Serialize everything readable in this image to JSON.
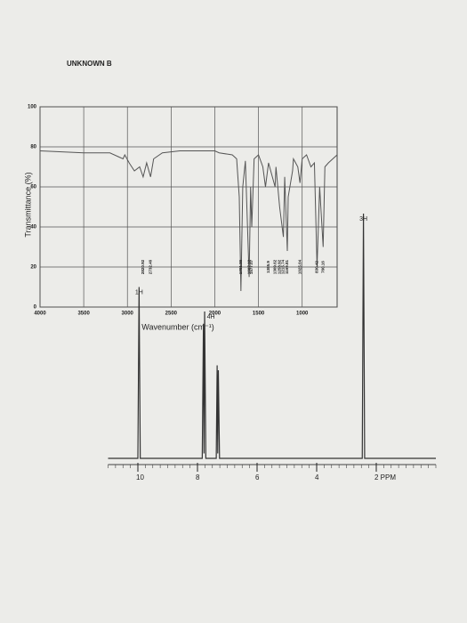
{
  "chart_data": [
    {
      "type": "line",
      "title": "UNKNOWN B",
      "x_label": "Wavenumber (cm⁻¹)",
      "y_label": "Transmittance (%)",
      "x": [
        4000,
        3500,
        3200,
        3100,
        3050,
        3030,
        2980,
        2920,
        2860,
        2820,
        2780,
        2735,
        2700,
        2600,
        2400,
        2200,
        2000,
        1950,
        1800,
        1750,
        1720,
        1701,
        1680,
        1650,
        1607,
        1590,
        1577,
        1550,
        1500,
        1450,
        1420,
        1385,
        1310,
        1300,
        1258,
        1215,
        1200,
        1170,
        1160,
        1110,
        1100,
        1050,
        1025,
        1000,
        950,
        900,
        860,
        830,
        800,
        760,
        740,
        700,
        650,
        600
      ],
      "series": [
        {
          "color": "#555555",
          "values": [
            78,
            77,
            77,
            75,
            74,
            76,
            72,
            68,
            70,
            65,
            72,
            65,
            74,
            77,
            78,
            78,
            78,
            77,
            76,
            74,
            55,
            8,
            60,
            73,
            15,
            60,
            40,
            74,
            76,
            70,
            60,
            72,
            60,
            70,
            50,
            35,
            65,
            28,
            55,
            68,
            74,
            70,
            62,
            74,
            76,
            70,
            72,
            20,
            60,
            30,
            70,
            72,
            74,
            76
          ]
        }
      ],
      "peak_labels": [
        2820.92,
        2732.46,
        1701.36,
        1607.12,
        1577.07,
        1385.9,
        1309.62,
        1258.92,
        1215.74,
        1169.81,
        1025.04,
        830.42,
        760.16
      ],
      "xlim": [
        4000,
        600
      ],
      "ylim": [
        0,
        100
      ],
      "xticks": [
        4000,
        3500,
        3000,
        2500,
        2000,
        1500,
        1000
      ],
      "yticks": [
        0,
        20,
        40,
        60,
        80,
        100
      ],
      "grid": true
    },
    {
      "type": "line",
      "x": [
        11,
        10.0,
        9.96,
        9.92,
        7.84,
        7.8,
        7.78,
        7.76,
        7.72,
        7.37,
        7.34,
        7.32,
        7.3,
        7.26,
        2.47,
        2.43,
        2.39,
        0
      ],
      "series": [
        {
          "color": "#333333",
          "values": [
            0,
            0,
            70,
            0,
            0,
            55,
            2,
            60,
            0,
            0,
            38,
            2,
            36,
            0,
            0,
            100,
            0,
            0
          ]
        }
      ],
      "integrals": [
        {
          "label": "1H",
          "x": 9.96
        },
        {
          "label": "4H",
          "x": 7.55
        },
        {
          "label": "3H",
          "x": 2.43
        }
      ],
      "xlim": [
        11,
        0
      ],
      "ylim": [
        0,
        100
      ],
      "xticks": [
        10,
        8,
        6,
        4,
        {
          "value": 2,
          "label": "2 PPM"
        }
      ]
    }
  ]
}
